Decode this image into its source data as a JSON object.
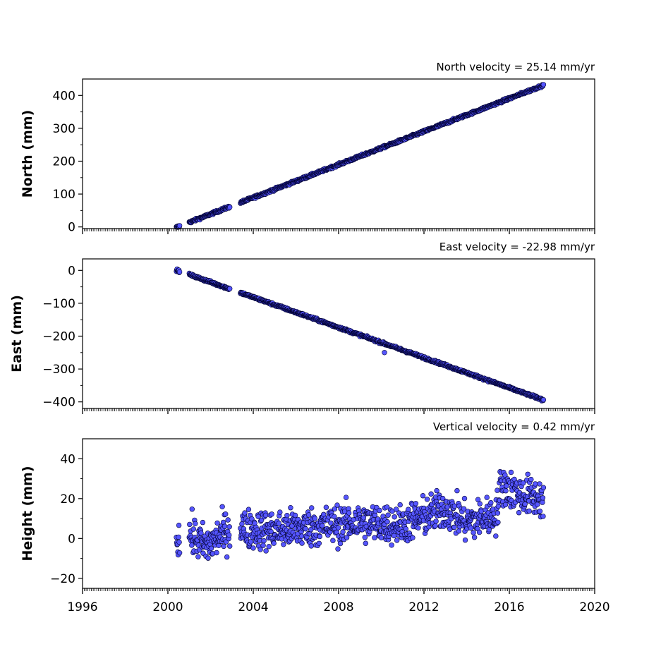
{
  "chart_data": [
    {
      "type": "scatter",
      "title": "North velocity = 25.14 mm/yr",
      "ylabel": "North (mm)",
      "xlim": [
        1996,
        2020
      ],
      "ylim": [
        -5,
        450
      ],
      "yticks": [
        0,
        100,
        200,
        300,
        400
      ],
      "ytick_labels": [
        "0",
        "100",
        "200",
        "300",
        "400"
      ],
      "xticks_labeled": false,
      "velocity_mm_per_yr": 25.14,
      "segments": [
        [
          2000.4,
          2000.55
        ],
        [
          2001.0,
          2002.9
        ],
        [
          2003.4,
          2017.6
        ]
      ],
      "trend": {
        "x0": 2000.45,
        "y0": 0,
        "slope": 25.14
      },
      "scatter_amplitude_mm": 3,
      "marker_color": "#5555ff",
      "marker_edge": "#000033",
      "grid": false
    },
    {
      "type": "scatter",
      "title": "East velocity = -22.98 mm/yr",
      "ylabel": "East (mm)",
      "xlim": [
        1996,
        2020
      ],
      "ylim": [
        -420,
        35
      ],
      "yticks": [
        0,
        -100,
        -200,
        -300,
        -400
      ],
      "ytick_labels": [
        "0",
        "−100",
        "−200",
        "−300",
        "−400"
      ],
      "xticks_labeled": false,
      "velocity_mm_per_yr": -22.98,
      "segments": [
        [
          2000.4,
          2000.55
        ],
        [
          2001.0,
          2002.9
        ],
        [
          2003.4,
          2017.6
        ]
      ],
      "trend": {
        "x0": 2000.45,
        "y0": 0,
        "slope": -22.98
      },
      "scatter_amplitude_mm": 3,
      "outliers": [
        {
          "x": 2010.15,
          "y": -250
        }
      ],
      "marker_color": "#5555ff",
      "marker_edge": "#000033",
      "grid": false
    },
    {
      "type": "scatter",
      "title": "Vertical velocity = 0.42 mm/yr",
      "ylabel": "Height (mm)",
      "xlim": [
        1996,
        2020
      ],
      "ylim": [
        -25,
        50
      ],
      "yticks": [
        -20,
        0,
        20,
        40
      ],
      "ytick_labels": [
        "−20",
        "0",
        "20",
        "40"
      ],
      "xticks": [
        1996,
        2000,
        2004,
        2008,
        2012,
        2016,
        2020
      ],
      "xtick_labels": [
        "1996",
        "2000",
        "2004",
        "2008",
        "2012",
        "2016",
        "2020"
      ],
      "xticks_labeled": true,
      "velocity_mm_per_yr": 0.42,
      "segments": [
        [
          2000.4,
          2000.55
        ],
        [
          2001.0,
          2002.9
        ],
        [
          2003.4,
          2017.6
        ]
      ],
      "level_profile": [
        [
          2000.4,
          0
        ],
        [
          2001.0,
          2
        ],
        [
          2001.8,
          -4
        ],
        [
          2002.9,
          5
        ],
        [
          2003.4,
          5
        ],
        [
          2005.0,
          4
        ],
        [
          2007.0,
          6
        ],
        [
          2009.0,
          8
        ],
        [
          2011.0,
          7
        ],
        [
          2013.0,
          15
        ],
        [
          2014.0,
          8
        ],
        [
          2015.4,
          12
        ],
        [
          2015.6,
          27
        ],
        [
          2016.5,
          22
        ],
        [
          2017.6,
          20
        ]
      ],
      "scatter_amplitude_mm": 7,
      "marker_color": "#5555ff",
      "marker_edge": "#000033",
      "grid": false
    }
  ]
}
